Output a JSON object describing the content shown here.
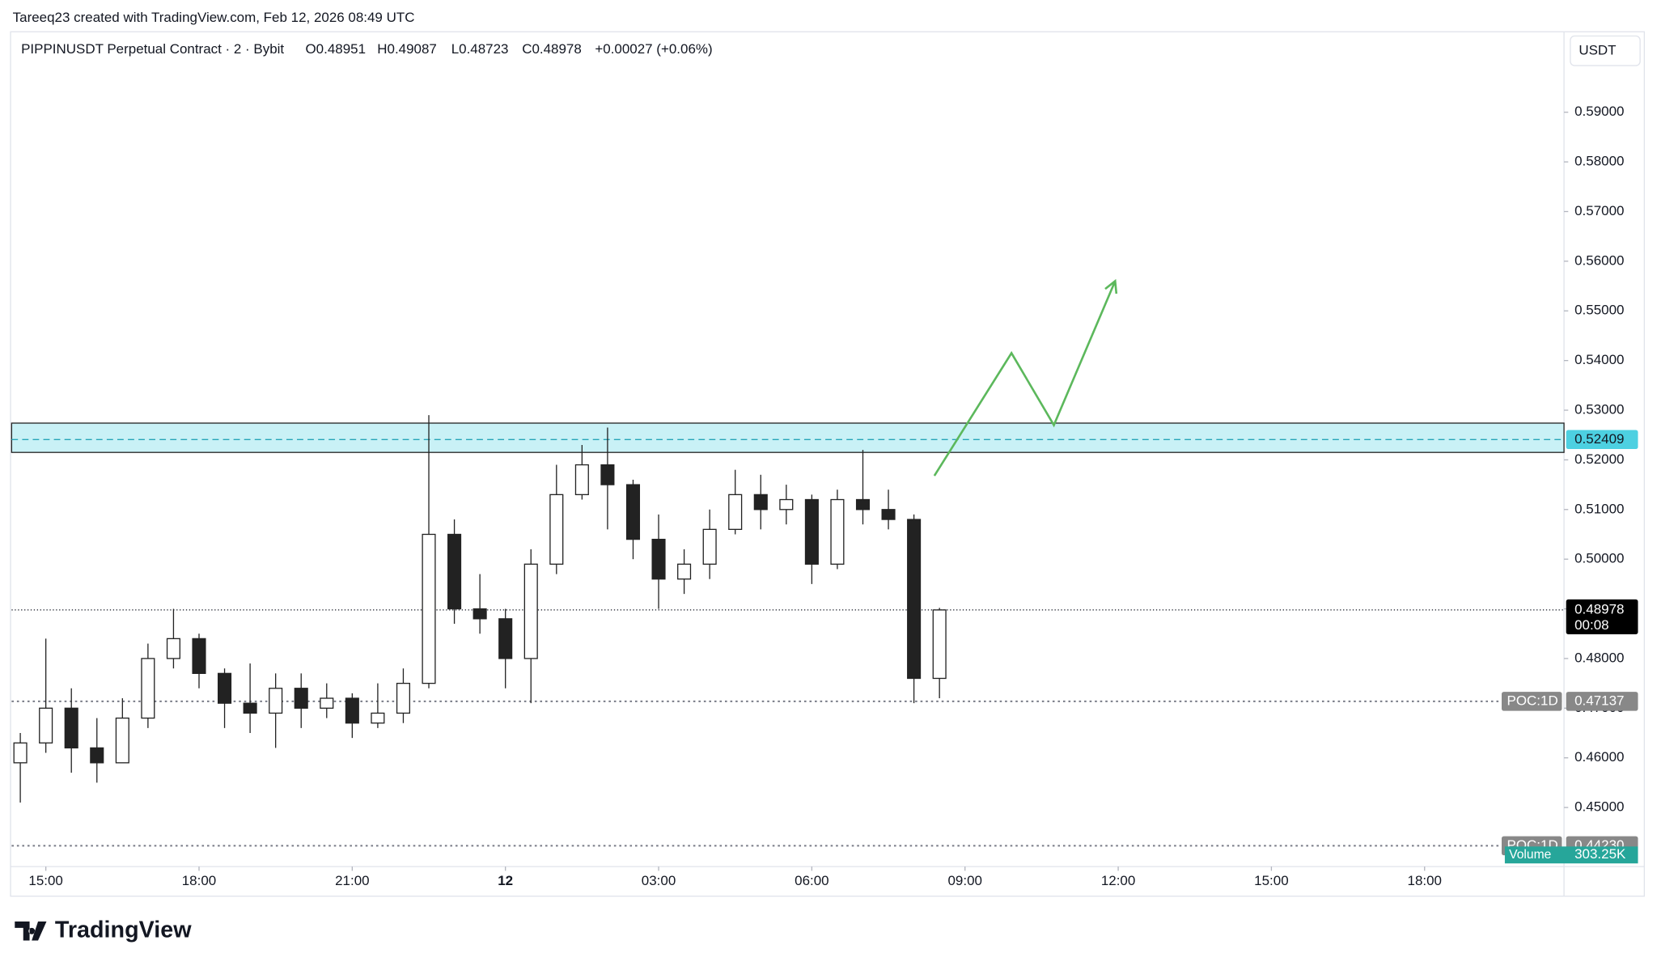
{
  "header": {
    "credit": "Tareeq23 created with TradingView.com, Feb 12, 2026 08:49 UTC",
    "symbol": "PIPPINUSDT Perpetual Contract · 2 · Bybit",
    "open": "O0.48951",
    "high": "H0.49087",
    "low": "L0.48723",
    "close": "C0.48978",
    "change": "+0.00027 (+0.06%)"
  },
  "chart_data": {
    "type": "candlestick",
    "currency": "USDT",
    "xlim": [
      14.33,
      44.73
    ],
    "ylim": [
      0.4381,
      0.6062
    ],
    "xticks": [
      {
        "value": 15,
        "label": "15:00"
      },
      {
        "value": 18,
        "label": "18:00"
      },
      {
        "value": 21,
        "label": "21:00"
      },
      {
        "value": 24,
        "label": "12"
      },
      {
        "value": 27,
        "label": "03:00"
      },
      {
        "value": 30,
        "label": "06:00"
      },
      {
        "value": 33,
        "label": "09:00"
      },
      {
        "value": 36,
        "label": "12:00"
      },
      {
        "value": 39,
        "label": "15:00"
      },
      {
        "value": 42,
        "label": "18:00"
      }
    ],
    "yticks": [
      {
        "value": 0.45,
        "label": "0.45000"
      },
      {
        "value": 0.46,
        "label": "0.46000"
      },
      {
        "value": 0.47,
        "label": "0.47000"
      },
      {
        "value": 0.48,
        "label": "0.48000"
      },
      {
        "value": 0.49,
        "label": "0.49000"
      },
      {
        "value": 0.5,
        "label": "0.50000"
      },
      {
        "value": 0.51,
        "label": "0.51000"
      },
      {
        "value": 0.52,
        "label": "0.52000"
      },
      {
        "value": 0.53,
        "label": "0.53000"
      },
      {
        "value": 0.54,
        "label": "0.54000"
      },
      {
        "value": 0.55,
        "label": "0.55000"
      },
      {
        "value": 0.56,
        "label": "0.56000"
      },
      {
        "value": 0.57,
        "label": "0.57000"
      },
      {
        "value": 0.58,
        "label": "0.58000"
      },
      {
        "value": 0.59,
        "label": "0.59000"
      }
    ],
    "candles": {
      "color": "#222222",
      "x": [
        14.5,
        15,
        15.5,
        16,
        16.5,
        17,
        17.5,
        18,
        18.5,
        19,
        19.5,
        20,
        20.5,
        21,
        21.5,
        22,
        22.5,
        23,
        23.5,
        24,
        24.5,
        25,
        25.5,
        26,
        26.5,
        27,
        27.5,
        28,
        28.5,
        29,
        29.5,
        30,
        30.5,
        31,
        31.5,
        32,
        32.5
      ],
      "open": [
        0.459,
        0.463,
        0.47,
        0.462,
        0.459,
        0.468,
        0.48,
        0.484,
        0.477,
        0.471,
        0.469,
        0.474,
        0.47,
        0.472,
        0.467,
        0.469,
        0.475,
        0.505,
        0.49,
        0.488,
        0.48,
        0.499,
        0.513,
        0.519,
        0.515,
        0.504,
        0.496,
        0.499,
        0.506,
        0.513,
        0.51,
        0.512,
        0.499,
        0.512,
        0.51,
        0.508,
        0.476
      ],
      "high": [
        0.465,
        0.484,
        0.474,
        0.468,
        0.472,
        0.483,
        0.49,
        0.485,
        0.478,
        0.479,
        0.477,
        0.477,
        0.475,
        0.473,
        0.475,
        0.478,
        0.529,
        0.508,
        0.497,
        0.49,
        0.502,
        0.519,
        0.523,
        0.5265,
        0.516,
        0.509,
        0.502,
        0.51,
        0.518,
        0.517,
        0.515,
        0.513,
        0.514,
        0.522,
        0.514,
        0.509,
        0.4902
      ],
      "low": [
        0.451,
        0.461,
        0.457,
        0.455,
        0.459,
        0.466,
        0.478,
        0.474,
        0.466,
        0.465,
        0.462,
        0.466,
        0.468,
        0.464,
        0.466,
        0.467,
        0.474,
        0.487,
        0.485,
        0.474,
        0.471,
        0.497,
        0.512,
        0.506,
        0.5,
        0.49,
        0.493,
        0.496,
        0.505,
        0.506,
        0.507,
        0.495,
        0.498,
        0.507,
        0.506,
        0.471,
        0.472
      ],
      "close": [
        0.463,
        0.47,
        0.462,
        0.459,
        0.468,
        0.48,
        0.484,
        0.477,
        0.471,
        0.469,
        0.474,
        0.47,
        0.472,
        0.467,
        0.469,
        0.475,
        0.505,
        0.49,
        0.488,
        0.48,
        0.499,
        0.513,
        0.519,
        0.515,
        0.504,
        0.496,
        0.499,
        0.506,
        0.513,
        0.51,
        0.512,
        0.499,
        0.512,
        0.51,
        0.508,
        0.476,
        0.48978
      ]
    },
    "zone": {
      "bottom": 0.5215,
      "top": 0.5274,
      "mid": 0.52409,
      "mid_label": "0.52409",
      "color": "#b2ebf2"
    },
    "last_price": {
      "value": 0.48978,
      "label": "0.48978",
      "countdown": "00:08"
    },
    "poc": [
      {
        "name": "POC:1D",
        "value": 0.47137,
        "label": "0.47137"
      },
      {
        "name": "POC:1D",
        "value": 0.4423,
        "label": "0.44230"
      }
    ],
    "volume": {
      "name": "Volume",
      "label": "303.25K"
    },
    "projection": {
      "color": "#5cb85c",
      "x": [
        32.4,
        33.91,
        34.74,
        35.94
      ],
      "y": [
        0.5168,
        0.5415,
        0.527,
        0.556
      ]
    },
    "logo": "TradingView"
  }
}
